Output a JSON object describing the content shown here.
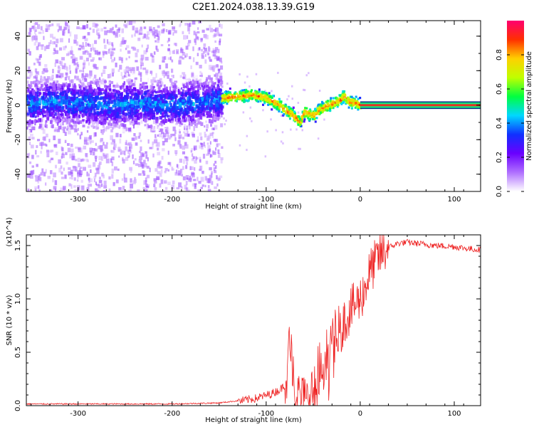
{
  "title": "C2E1.2024.038.13.39.G19",
  "chart_data": [
    {
      "type": "heatmap",
      "xlabel": "Height of straight line (km)",
      "ylabel": "Frequency (Hz)",
      "xlim": [
        -355,
        128
      ],
      "ylim": [
        -50,
        49
      ],
      "xticks": [
        -300,
        -200,
        -100,
        0,
        100
      ],
      "yticks": [
        -40,
        -20,
        0,
        20,
        40
      ],
      "grid": false,
      "colorbar": {
        "label": "Normalized spectral amplitude",
        "range": [
          0,
          1
        ],
        "ticks": [
          "0.0",
          "0.2",
          "0.4",
          "0.6",
          "0.8"
        ],
        "colors": [
          "#ffffff",
          "#b070ff",
          "#6a00ff",
          "#1030ff",
          "#00d8ff",
          "#00ff40",
          "#c0ff00",
          "#ffd000",
          "#ff3000",
          "#ff0070"
        ]
      },
      "ridge_frequency": {
        "x": [
          -355,
          -330,
          -300,
          -270,
          -240,
          -210,
          -180,
          -150,
          -130,
          -115,
          -100,
          -90,
          -80,
          -72,
          -65,
          -60,
          -55,
          -50,
          -45,
          -38,
          -30,
          -22,
          -18,
          -12,
          -5,
          0,
          128
        ],
        "y": [
          1,
          3,
          2,
          1,
          2,
          1,
          2,
          4,
          5,
          6,
          4,
          1,
          -3,
          -6,
          -10,
          -4,
          -5,
          -6,
          -3,
          -1,
          1,
          3,
          5,
          2,
          1,
          0,
          0
        ]
      },
      "noise_floor_end_x": -148
    },
    {
      "type": "line",
      "xlabel": "Height of straight line (km)",
      "ylabel": "SNR (10 * v/v)",
      "y_multiplier": "(x10^4)",
      "xlim": [
        -355,
        128
      ],
      "ylim": [
        0,
        1.6
      ],
      "xticks": [
        -300,
        -200,
        -100,
        0,
        100
      ],
      "yticks": [
        "0.0",
        "0.5",
        "1.0",
        "1.5"
      ],
      "series": [
        {
          "color": "#ee2222",
          "x": [
            -355,
            -300,
            -250,
            -200,
            -150,
            -130,
            -110,
            -95,
            -85,
            -80,
            -76,
            -73,
            -70,
            -65,
            -60,
            -50,
            -40,
            -30,
            -25,
            -20,
            -10,
            0,
            5,
            10,
            20,
            30,
            40,
            50,
            60,
            80,
            100,
            115,
            128
          ],
          "y": [
            0.01,
            0.01,
            0.01,
            0.01,
            0.02,
            0.04,
            0.07,
            0.11,
            0.15,
            0.2,
            0.35,
            0.25,
            0.15,
            0.1,
            0.06,
            0.08,
            0.3,
            0.6,
            0.55,
            0.75,
            0.9,
            1.0,
            1.1,
            1.25,
            1.4,
            1.48,
            1.52,
            1.53,
            1.52,
            1.5,
            1.49,
            1.47,
            1.46
          ]
        }
      ]
    }
  ]
}
